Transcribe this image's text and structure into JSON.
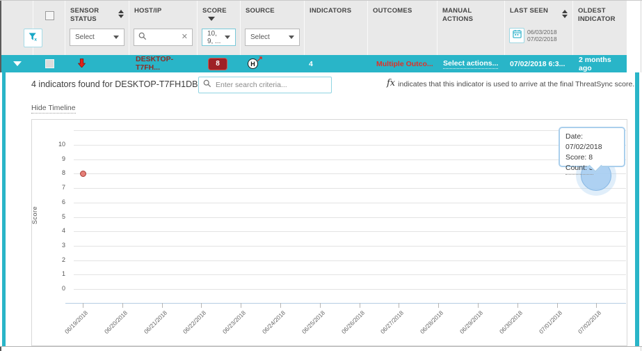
{
  "table": {
    "columns": [
      {
        "label": ""
      },
      {
        "label": ""
      },
      {
        "label": "SENSOR STATUS",
        "sort": "both",
        "filter_value": "Select"
      },
      {
        "label": "HOST/IP",
        "filter": "search"
      },
      {
        "label": "SCORE",
        "sort": "desc",
        "filter_value": "10, 9, ..."
      },
      {
        "label": "SOURCE",
        "filter_value": "Select"
      },
      {
        "label": "INDICATORS"
      },
      {
        "label": "OUTCOMES"
      },
      {
        "label": "MANUAL ACTIONS"
      },
      {
        "label": "LAST SEEN",
        "sort": "both",
        "date_from": "06/03/2018",
        "date_to": "07/02/2018"
      },
      {
        "label": "OLDEST INDICATOR"
      }
    ],
    "row": {
      "host": "DESKTOP-T7FH...",
      "score": "8",
      "source_icon": "H",
      "indicators": "4",
      "outcomes": "Multiple Outco...",
      "manual_actions": "Select actions...",
      "last_seen": "07/02/2018 6:3...",
      "oldest_indicator": "2 months ago"
    }
  },
  "detail": {
    "heading": "4 indicators found for DESKTOP-T7FH1DB",
    "search_placeholder": "Enter search criteria...",
    "fx_prefix": "fx",
    "fx_note": "indicates that this indicator is used to arrive at the final ThreatSync score.",
    "hide_timeline_label": "Hide Timeline"
  },
  "chart_data": {
    "type": "scatter",
    "title": "",
    "xlabel": "",
    "ylabel": "Score",
    "ylim": [
      0,
      10
    ],
    "yticks": [
      0,
      1,
      2,
      3,
      4,
      5,
      6,
      7,
      8,
      9,
      10
    ],
    "grid": true,
    "legend": false,
    "x_dates": [
      "06/19/2018",
      "06/20/2018",
      "06/21/2018",
      "06/22/2018",
      "06/23/2018",
      "06/24/2018",
      "06/25/2018",
      "06/26/2018",
      "06/27/2018",
      "06/28/2018",
      "06/29/2018",
      "06/30/2018",
      "07/01/2018",
      "07/02/2018"
    ],
    "points": [
      {
        "date": "06/19/2018",
        "score": 8,
        "style": "small-red-dot"
      },
      {
        "date": "07/02/2018",
        "score": 8,
        "count": 3,
        "style": "large-blue-bubble",
        "hovered": true
      }
    ],
    "tooltip": {
      "date": "Date: 07/02/2018",
      "score": "Score: 8",
      "count": "Count: 3"
    }
  },
  "colors": {
    "accent_teal": "#29b5c8",
    "selected_row_bg": "#29b5c8",
    "score_badge_bg": "#9e2126",
    "outcomes_red": "#e03127",
    "host_link_red": "#8e2d25",
    "bubble_blue": "#a6cdf0",
    "dot_red": "#e57f78"
  }
}
